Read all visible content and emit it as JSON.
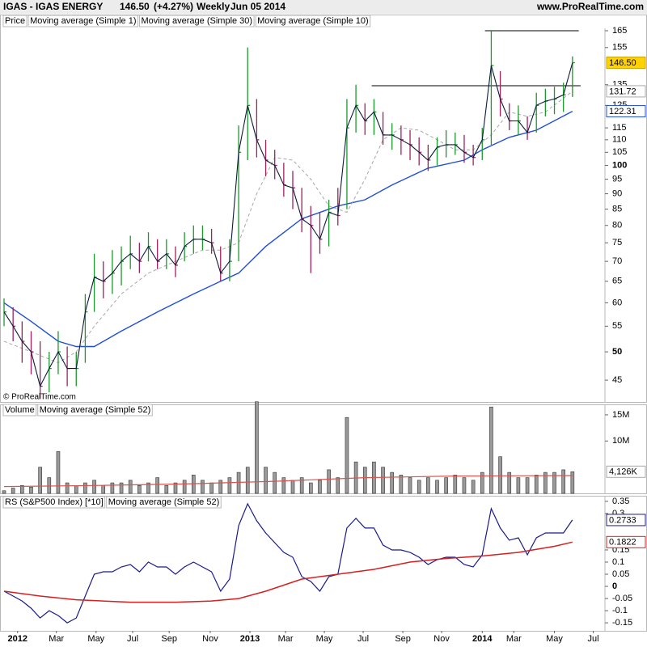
{
  "header": {
    "symbol": "IGAS - IGAS ENERGY",
    "price_label": "146.50",
    "change": "(+4.27%)",
    "period": "Weekly",
    "date": "Jun 05 2014",
    "site": "www.ProRealTime.com",
    "copyright": "© ProRealTime.com"
  },
  "chart_data": [
    {
      "type": "ohlc",
      "title": "Price",
      "x": [
        0,
        2,
        4,
        6,
        8,
        10,
        12,
        14,
        16,
        18,
        20,
        22,
        24,
        26,
        28,
        30,
        32,
        34,
        36,
        38,
        40,
        42,
        44,
        46,
        48,
        50,
        52,
        54,
        56,
        58,
        60,
        62,
        64,
        66,
        68,
        70,
        72,
        74,
        76,
        78,
        80,
        82,
        84,
        86,
        88,
        90,
        92,
        94,
        96,
        98,
        100,
        102,
        104,
        106,
        108,
        110,
        112,
        114,
        116,
        118,
        120,
        122,
        124,
        126
      ],
      "high": [
        61,
        59,
        56,
        54,
        52,
        50,
        54,
        51,
        50,
        62,
        72,
        70,
        73,
        74,
        77,
        75,
        78,
        76,
        76,
        74,
        78,
        80,
        80,
        79,
        74,
        76,
        116,
        155,
        128,
        110,
        106,
        101,
        98,
        92,
        86,
        84,
        88,
        92,
        128,
        135,
        126,
        128,
        122,
        117,
        116,
        114,
        111,
        108,
        111,
        114,
        113,
        112,
        108,
        115,
        165,
        142,
        126,
        125,
        120,
        131,
        133,
        134,
        136,
        150
      ],
      "low": [
        55,
        52,
        48,
        46,
        42,
        43,
        46,
        44,
        44,
        48,
        58,
        61,
        62,
        64,
        68,
        67,
        70,
        68,
        68,
        66,
        70,
        72,
        73,
        72,
        65,
        65,
        70,
        102,
        103,
        96,
        95,
        89,
        85,
        78,
        67,
        72,
        74,
        80,
        85,
        113,
        112,
        112,
        108,
        106,
        104,
        102,
        100,
        98,
        100,
        103,
        104,
        101,
        100,
        102,
        108,
        120,
        114,
        112,
        110,
        113,
        120,
        121,
        122,
        129
      ],
      "close": [
        58,
        55,
        52,
        50,
        44,
        47,
        50,
        47,
        47,
        58,
        66,
        65,
        67,
        70,
        72,
        70,
        74,
        70,
        72,
        69,
        74,
        76,
        76,
        75,
        67,
        70,
        105,
        125,
        110,
        102,
        100,
        93,
        92,
        82,
        80,
        76,
        84,
        83,
        115,
        125,
        118,
        122,
        112,
        112,
        110,
        108,
        105,
        102,
        107,
        108,
        108,
        105,
        103,
        110,
        145,
        128,
        118,
        118,
        113,
        125,
        127,
        128,
        130,
        146.5
      ],
      "up_color": "#1a9a2a",
      "down_color": "#a3205e",
      "close_line": {
        "name": "Moving average (Simple 1)",
        "color": "#0b1a3c"
      },
      "series": [
        {
          "name": "Moving average (Simple 30)",
          "color": "#1f4fd8",
          "x": [
            0,
            6,
            12,
            16,
            20,
            26,
            34,
            42,
            48,
            52,
            58,
            66,
            74,
            80,
            86,
            94,
            102,
            106,
            112,
            118,
            126
          ],
          "values": [
            60,
            56,
            52,
            51,
            51,
            54,
            58,
            62,
            65,
            67,
            74,
            82,
            86,
            88,
            93,
            99,
            102,
            106,
            111,
            114,
            122.31
          ]
        },
        {
          "name": "Moving average (Simple 10)",
          "color": "#a8a8a8",
          "dashed": true,
          "x": [
            0,
            6,
            12,
            16,
            20,
            26,
            32,
            38,
            44,
            48,
            52,
            56,
            60,
            64,
            68,
            72,
            76,
            80,
            84,
            88,
            92,
            96,
            100,
            104,
            108,
            112,
            116,
            120,
            126
          ],
          "values": [
            52,
            50,
            48,
            50,
            55,
            62,
            67,
            70,
            73,
            73,
            75,
            90,
            103,
            102,
            95,
            86,
            84,
            95,
            110,
            115,
            114,
            110,
            106,
            106,
            112,
            122,
            120,
            122,
            131.72
          ]
        }
      ],
      "lines": [
        {
          "value": 165,
          "x": [
            106.6,
            127.4
          ],
          "color": "#333333"
        },
        {
          "value": 134.5,
          "x": [
            81.5,
            127.8
          ],
          "color": "#333333"
        }
      ],
      "xlim": [
        -0.9,
        133.2
      ],
      "ylim": [
        41.5,
        166.5
      ],
      "log": true,
      "yticks": [
        165,
        155,
        135,
        125,
        115,
        110,
        105,
        100,
        95,
        90,
        85,
        80,
        75,
        70,
        65,
        60,
        55,
        50,
        45
      ]
    },
    {
      "type": "bar",
      "title": "Volume",
      "x": [
        0,
        2,
        4,
        6,
        8,
        10,
        12,
        14,
        16,
        18,
        20,
        22,
        24,
        26,
        28,
        30,
        32,
        34,
        36,
        38,
        40,
        42,
        44,
        46,
        48,
        50,
        52,
        54,
        56,
        58,
        60,
        62,
        64,
        66,
        68,
        70,
        72,
        74,
        76,
        78,
        80,
        82,
        84,
        86,
        88,
        90,
        92,
        94,
        96,
        98,
        100,
        102,
        104,
        106,
        108,
        110,
        112,
        114,
        116,
        118,
        120,
        122,
        124,
        126
      ],
      "values": [
        0.5,
        1,
        1.5,
        1.2,
        5,
        3,
        8,
        2,
        1.5,
        2,
        2.5,
        1.5,
        2,
        2,
        2.5,
        1.5,
        2,
        3,
        1.5,
        2,
        2.5,
        3.5,
        2.5,
        2,
        2.5,
        3,
        4,
        5,
        17.5,
        5,
        4,
        3,
        2.5,
        3,
        2,
        2.5,
        4.5,
        3,
        14.5,
        6,
        5,
        6,
        5,
        4,
        3.5,
        3,
        2.5,
        3,
        2.5,
        3,
        3.5,
        3,
        2.5,
        4,
        16.5,
        7,
        4,
        3,
        3,
        3.5,
        4,
        4,
        4.5,
        4.126
      ],
      "last_value_label": "4,126K",
      "color": "#9a9a9a",
      "series": [
        {
          "name": "Moving average (Simple 52)",
          "color": "#d9534f",
          "x": [
            0,
            20,
            40,
            60,
            80,
            100,
            126
          ],
          "values": [
            1.3,
            1.5,
            1.8,
            2.3,
            3,
            3.3,
            3.4
          ]
        }
      ],
      "xlim": [
        -0.9,
        133.2
      ],
      "ylim": [
        0,
        17
      ],
      "yticks": [
        {
          "value": 15,
          "label": "15M"
        },
        {
          "value": 10,
          "label": "10M"
        }
      ]
    },
    {
      "type": "line",
      "title": "RS (S&P500 Index) [*10]",
      "x": [
        0,
        2,
        4,
        6,
        8,
        10,
        12,
        14,
        16,
        18,
        20,
        22,
        24,
        26,
        28,
        30,
        32,
        34,
        36,
        38,
        40,
        42,
        44,
        46,
        48,
        50,
        52,
        54,
        56,
        58,
        60,
        62,
        64,
        66,
        68,
        70,
        72,
        74,
        76,
        78,
        80,
        82,
        84,
        86,
        88,
        90,
        92,
        94,
        96,
        98,
        100,
        102,
        104,
        106,
        108,
        110,
        112,
        114,
        116,
        118,
        120,
        122,
        124,
        126
      ],
      "values": [
        -0.02,
        -0.04,
        -0.06,
        -0.09,
        -0.13,
        -0.1,
        -0.12,
        -0.15,
        -0.13,
        -0.04,
        0.05,
        0.06,
        0.06,
        0.08,
        0.09,
        0.06,
        0.1,
        0.08,
        0.08,
        0.05,
        0.08,
        0.1,
        0.08,
        0.06,
        -0.02,
        0.03,
        0.25,
        0.34,
        0.27,
        0.22,
        0.18,
        0.14,
        0.12,
        0.04,
        0.02,
        -0.02,
        0.04,
        0.05,
        0.24,
        0.28,
        0.24,
        0.24,
        0.17,
        0.15,
        0.15,
        0.14,
        0.12,
        0.09,
        0.11,
        0.12,
        0.12,
        0.09,
        0.08,
        0.13,
        0.32,
        0.24,
        0.19,
        0.2,
        0.13,
        0.2,
        0.22,
        0.22,
        0.22,
        0.2733
      ],
      "color": "#1a1a8c",
      "series": [
        {
          "name": "Moving average (Simple 52)",
          "color": "#d42020",
          "x": [
            0,
            8,
            16,
            28,
            38,
            46,
            52,
            58,
            66,
            74,
            82,
            90,
            98,
            106,
            114,
            122,
            126
          ],
          "values": [
            -0.02,
            -0.04,
            -0.055,
            -0.065,
            -0.065,
            -0.06,
            -0.05,
            -0.02,
            0.03,
            0.05,
            0.07,
            0.1,
            0.115,
            0.125,
            0.14,
            0.165,
            0.1822
          ]
        }
      ],
      "xlim": [
        -0.9,
        133.2
      ],
      "ylim": [
        -0.183,
        0.373
      ],
      "yticks": [
        0.35,
        0.3,
        0.15,
        0.1,
        0.05,
        0,
        -0.05,
        -0.1,
        -0.15
      ],
      "xticks": [
        {
          "value": 3,
          "label": "2012"
        },
        {
          "value": 11.6,
          "label": "Mar"
        },
        {
          "value": 20.4,
          "label": "May"
        },
        {
          "value": 28.5,
          "label": "Jul"
        },
        {
          "value": 36.6,
          "label": "Sep"
        },
        {
          "value": 45.7,
          "label": "Nov"
        },
        {
          "value": 54.5,
          "label": "2013"
        },
        {
          "value": 62.4,
          "label": "Mar"
        },
        {
          "value": 71,
          "label": "May"
        },
        {
          "value": 79.6,
          "label": "Jul"
        },
        {
          "value": 88.4,
          "label": "Sep"
        },
        {
          "value": 97,
          "label": "Nov"
        },
        {
          "value": 106,
          "label": "2014"
        },
        {
          "value": 113,
          "label": "Mar"
        },
        {
          "value": 122,
          "label": "May"
        },
        {
          "value": 130.6,
          "label": "Jul"
        }
      ]
    }
  ]
}
